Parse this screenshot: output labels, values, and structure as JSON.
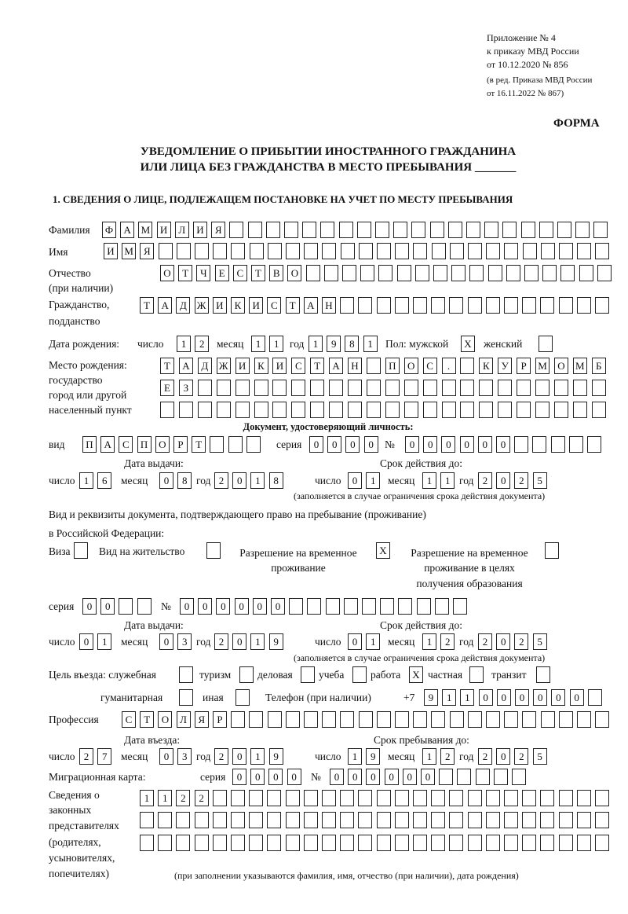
{
  "header": {
    "line1": "Приложение № 4",
    "line2": "к приказу МВД России",
    "line3": "от 10.12.2020 № 856",
    "line4": "(в ред. Приказа МВД России",
    "line5": "от 16.11.2022 № 867)",
    "form": "ФОРМА"
  },
  "title": {
    "line1": "УВЕДОМЛЕНИЕ О ПРИБЫТИИ ИНОСТРАННОГО ГРАЖДАНИНА",
    "line2": "ИЛИ ЛИЦА БЕЗ ГРАЖДАНСТВА В МЕСТО ПРЕБЫВАНИЯ _______"
  },
  "section1": "1. СВЕДЕНИЯ О ЛИЦЕ, ПОДЛЕЖАЩЕМ ПОСТАНОВКЕ НА УЧЕТ ПО МЕСТУ ПРЕБЫВАНИЯ",
  "labels": {
    "surname": "Фамилия",
    "name": "Имя",
    "patronymic": "Отчество",
    "patronymic2": "(при наличии)",
    "citizenship": "Гражданство,",
    "citizenship2": "подданство",
    "birth_date": "Дата рождения:",
    "day": "число",
    "month": "месяц",
    "year": "год",
    "sex": "Пол: мужской",
    "female": "женский",
    "birthplace1": "Место рождения:",
    "birthplace2": "государство",
    "birthplace3": "город или другой",
    "birthplace4": "населенный пункт",
    "id_doc": "Документ, удостоверяющий личность:",
    "kind": "вид",
    "series": "серия",
    "number": "№",
    "issue_date": "Дата выдачи:",
    "valid_until": "Срок действия до:",
    "validity_note": "(заполняется в случае ограничения срока действия документа)",
    "stay_doc1": "Вид и реквизиты документа, подтверждающего право на пребывание (проживание)",
    "stay_doc2": "в Российской Федерации:",
    "visa": "Виза",
    "residence": "Вид на жительство",
    "temp1": "Разрешение на временное",
    "temp2": "проживание",
    "edu1": "Разрешение на временное",
    "edu2": "проживание в целях",
    "edu3": "получения образования",
    "purpose": "Цель въезда: служебная",
    "tourism": "туризм",
    "business": "деловая",
    "study": "учеба",
    "work": "работа",
    "private": "частная",
    "transit": "транзит",
    "humanitarian": "гуманитарная",
    "other": "иная",
    "phone": "Телефон (при наличии)",
    "phone_prefix": "+7",
    "profession": "Профессия",
    "entry_date": "Дата въезда:",
    "stay_until": "Срок пребывания до:",
    "migration_card": "Миграционная карта:",
    "legal1": "Сведения о",
    "legal2": "законных",
    "legal3": "представителях",
    "legal4": "(родителях,",
    "legal5": "усыновителях,",
    "legal6": "попечителях)",
    "legal_note": "(при заполнении указываются фамилия, имя, отчество (при наличии), дата рождения)"
  },
  "fields": {
    "surname": [
      "Ф",
      "А",
      "М",
      "И",
      "Л",
      "И",
      "Я"
    ],
    "name": [
      "И",
      "М",
      "Я"
    ],
    "patronymic": [
      "О",
      "Т",
      "Ч",
      "Е",
      "С",
      "Т",
      "В",
      "О"
    ],
    "citizenship": [
      "Т",
      "А",
      "Д",
      "Ж",
      "И",
      "К",
      "И",
      "С",
      "Т",
      "А",
      "Н"
    ],
    "birth_day": [
      "1",
      "2"
    ],
    "birth_month": [
      "1",
      "1"
    ],
    "birth_year": [
      "1",
      "9",
      "8",
      "1"
    ],
    "sex_male": [
      "X"
    ],
    "sex_female": [
      ""
    ],
    "birthplace_row1": [
      "Т",
      "А",
      "Д",
      "Ж",
      "И",
      "К",
      "И",
      "С",
      "Т",
      "А",
      "Н",
      "",
      "П",
      "О",
      "С",
      ".",
      "",
      "К",
      "У",
      "Р",
      "М",
      "О",
      "М",
      "Б"
    ],
    "birthplace_row2": [
      "Е",
      "З"
    ],
    "birthplace_row3": [],
    "id_kind": [
      "П",
      "А",
      "С",
      "П",
      "О",
      "Р",
      "Т"
    ],
    "id_series": [
      "0",
      "0",
      "0",
      "0"
    ],
    "id_number": [
      "0",
      "0",
      "0",
      "0",
      "0",
      "0"
    ],
    "id_issue_day": [
      "1",
      "6"
    ],
    "id_issue_month": [
      "0",
      "8"
    ],
    "id_issue_year": [
      "2",
      "0",
      "1",
      "8"
    ],
    "id_valid_day": [
      "0",
      "1"
    ],
    "id_valid_month": [
      "1",
      "1"
    ],
    "id_valid_year": [
      "2",
      "0",
      "2",
      "5"
    ],
    "visa": [
      ""
    ],
    "residence": [
      ""
    ],
    "temp_residence": [
      "X"
    ],
    "edu_residence": [
      ""
    ],
    "stay_series": [
      "0",
      "0"
    ],
    "stay_number": [
      "0",
      "0",
      "0",
      "0",
      "0",
      "0"
    ],
    "stay_issue_day": [
      "0",
      "1"
    ],
    "stay_issue_month": [
      "0",
      "3"
    ],
    "stay_issue_year": [
      "2",
      "0",
      "1",
      "9"
    ],
    "stay_valid_day": [
      "0",
      "1"
    ],
    "stay_valid_month": [
      "1",
      "2"
    ],
    "stay_valid_year": [
      "2",
      "0",
      "2",
      "5"
    ],
    "purpose_official": [
      ""
    ],
    "purpose_tourism": [
      ""
    ],
    "purpose_business": [
      ""
    ],
    "purpose_study": [
      ""
    ],
    "purpose_work": [
      "X"
    ],
    "purpose_private": [
      ""
    ],
    "purpose_transit": [
      ""
    ],
    "purpose_humanitarian": [
      ""
    ],
    "purpose_other": [
      ""
    ],
    "phone": [
      "9",
      "1",
      "1",
      "0",
      "0",
      "0",
      "0",
      "0",
      "0"
    ],
    "profession": [
      "С",
      "Т",
      "О",
      "Л",
      "Я",
      "Р"
    ],
    "entry_day": [
      "2",
      "7"
    ],
    "entry_month": [
      "0",
      "3"
    ],
    "entry_year": [
      "2",
      "0",
      "1",
      "9"
    ],
    "stay_until_day": [
      "1",
      "9"
    ],
    "stay_until_month": [
      "1",
      "2"
    ],
    "stay_until_year": [
      "2",
      "0",
      "2",
      "5"
    ],
    "mig_series": [
      "0",
      "0",
      "0",
      "0"
    ],
    "mig_number": [
      "0",
      "0",
      "0",
      "0",
      "0",
      "0"
    ],
    "legal_row1": [
      "1",
      "1",
      "2",
      "2"
    ],
    "legal_row2": [],
    "legal_row3": []
  }
}
